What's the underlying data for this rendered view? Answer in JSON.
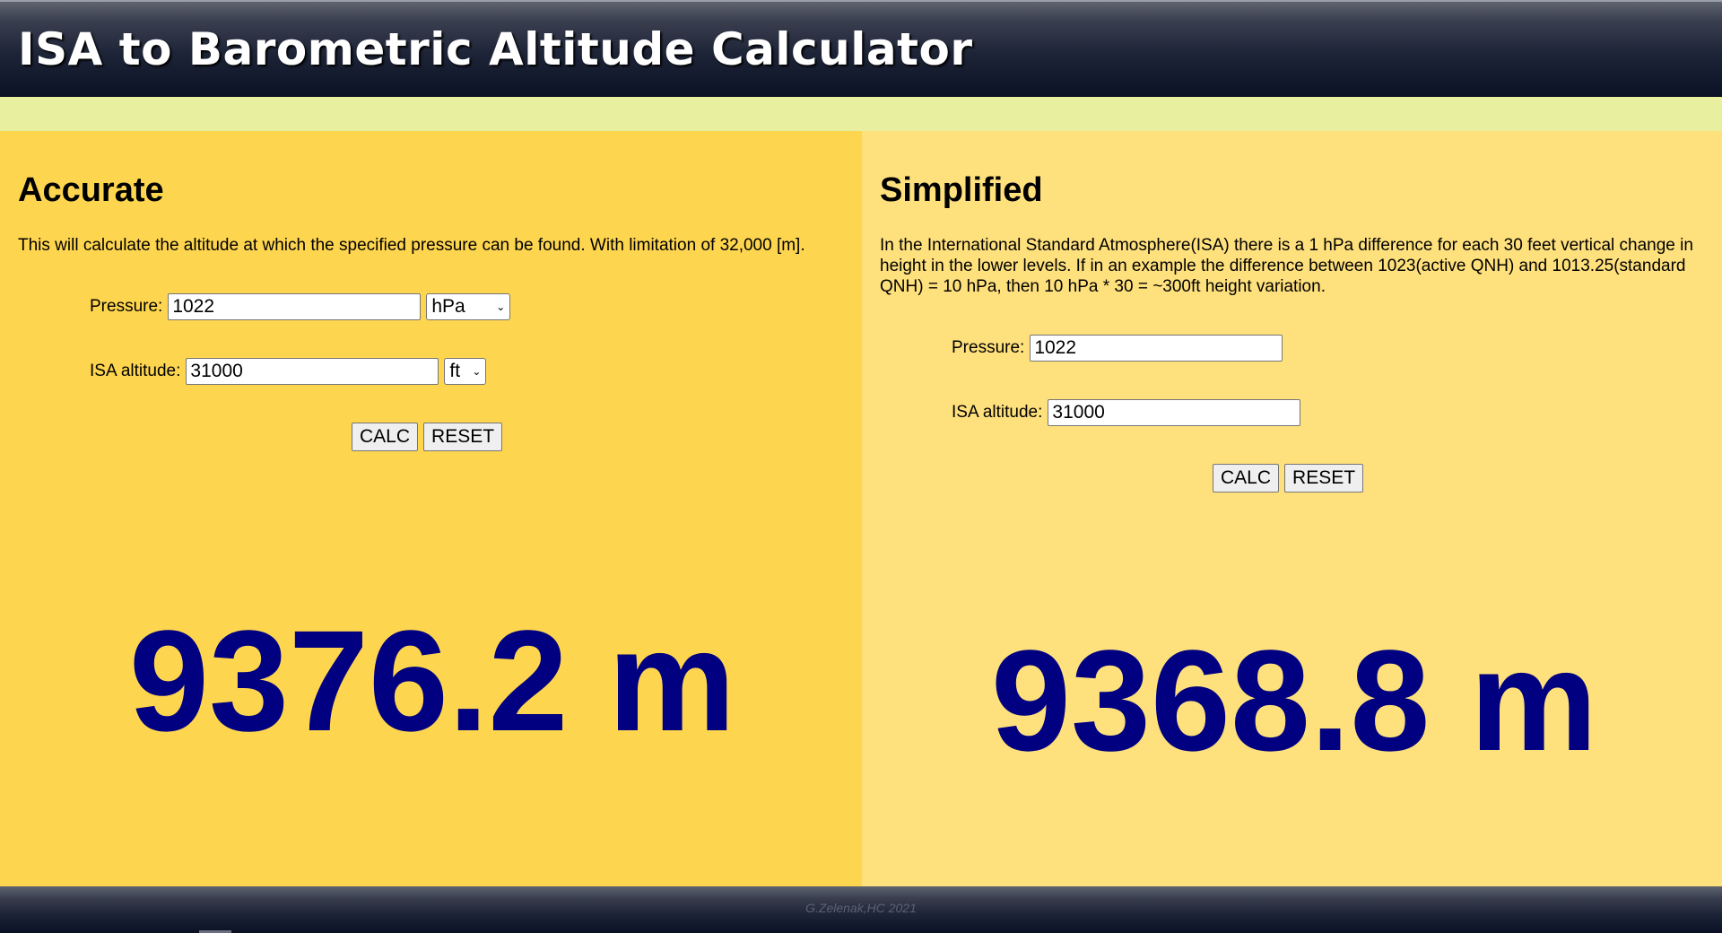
{
  "header": {
    "title": "ISA to Barometric Altitude Calculator"
  },
  "accurate": {
    "heading": "Accurate",
    "description": "This will calculate the altitude at which the specified pressure can be found. With limitation of 32,000 [m].",
    "pressure_label": "Pressure:",
    "pressure_value": "1022",
    "pressure_unit": "hPa",
    "altitude_label": "ISA altitude:",
    "altitude_value": "31000",
    "altitude_unit": "ft",
    "calc_label": "CALC",
    "reset_label": "RESET",
    "result": "9376.2 m"
  },
  "simplified": {
    "heading": "Simplified",
    "description": "In the International Standard Atmosphere(ISA) there is a 1 hPa difference for each 30 feet vertical change in height in the lower levels. If in an example the difference between 1023(active QNH) and 1013.25(standard QNH) = 10 hPa, then 10 hPa * 30 = ~300ft height variation.",
    "pressure_label": "Pressure:",
    "pressure_value": "1022",
    "altitude_label": "ISA altitude:",
    "altitude_value": "31000",
    "calc_label": "CALC",
    "reset_label": "RESET",
    "result": "9368.8 m"
  },
  "footer": {
    "credit": "G.Zelenak,HC 2021"
  },
  "colors": {
    "left_panel": "#fed54f",
    "right_panel": "#fee07d",
    "strip": "#e8ef9f",
    "result_text": "#000080"
  }
}
